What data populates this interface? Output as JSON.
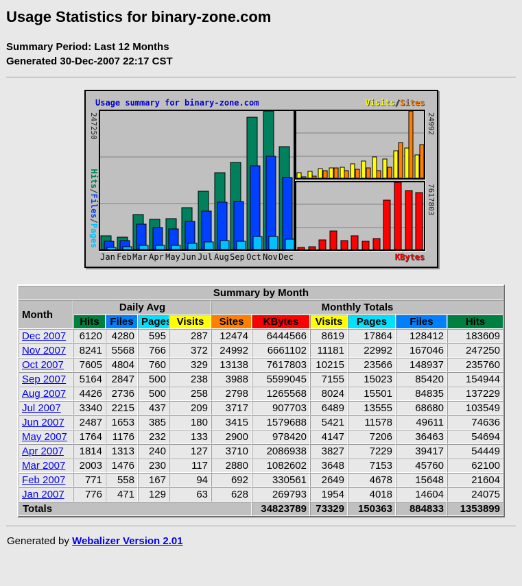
{
  "header": {
    "title": "Usage Statistics for binary-zone.com",
    "summary_period": "Summary Period: Last 12 Months",
    "generated": "Generated 30-Dec-2007 22:17 CST"
  },
  "chart_data": {
    "type": "bar",
    "title": "Usage summary for binary-zone.com",
    "categories": [
      "Jan",
      "Feb",
      "Mar",
      "Apr",
      "May",
      "Jun",
      "Jul",
      "Aug",
      "Sep",
      "Oct",
      "Nov",
      "Dec"
    ],
    "panels": {
      "left": {
        "ylabel_segments": [
          {
            "text": "Hits",
            "color": "#00805C"
          },
          {
            "text": "/",
            "color": "#404040"
          },
          {
            "text": "Files",
            "color": "#0040FF"
          },
          {
            "text": "/",
            "color": "#404040"
          },
          {
            "text": "Pages",
            "color": "#00C0FF"
          }
        ],
        "ymax": 247250,
        "axis_max_label": "247250",
        "grid": "thirds"
      },
      "right_top": {
        "ymax": 24992,
        "axis_max_label": "24992",
        "grid": "thirds"
      },
      "right_bottom": {
        "ymax": 7617803,
        "axis_max_label": "7617803",
        "grid": "thirds"
      }
    },
    "legend_top_right": [
      {
        "text": "Visits",
        "color": "#FFFF00"
      },
      {
        "text": "/",
        "color": "#404040"
      },
      {
        "text": "Sites",
        "color": "#FF8000"
      }
    ],
    "bottom_right_label": {
      "text": "KBytes",
      "color": "#FF0000"
    },
    "series": [
      {
        "name": "Hits",
        "panel": "left",
        "color": "#00805C",
        "values": [
          24075,
          21604,
          62100,
          54449,
          54694,
          74636,
          103549,
          137229,
          154944,
          235760,
          247250,
          183609
        ]
      },
      {
        "name": "Files",
        "panel": "left",
        "color": "#0040FF",
        "values": [
          14604,
          15648,
          45760,
          39417,
          36463,
          49611,
          68680,
          84835,
          85420,
          148937,
          167046,
          128412
        ]
      },
      {
        "name": "Pages",
        "panel": "left",
        "color": "#00C0FF",
        "values": [
          4018,
          4678,
          7153,
          7229,
          7206,
          11578,
          13555,
          15501,
          15023,
          23566,
          22992,
          17864
        ]
      },
      {
        "name": "Visits",
        "panel": "right_top",
        "color": "#FFFF00",
        "values": [
          1954,
          2649,
          3648,
          3827,
          4147,
          5421,
          6489,
          8024,
          7155,
          10215,
          11181,
          8619
        ]
      },
      {
        "name": "Sites",
        "panel": "right_top",
        "color": "#FF8000",
        "values": [
          628,
          692,
          2880,
          3710,
          2900,
          3415,
          3717,
          2798,
          3988,
          13138,
          24992,
          12474
        ]
      },
      {
        "name": "KBytes",
        "panel": "right_bottom",
        "color": "#FF0000",
        "values": [
          269793,
          330561,
          1082602,
          2086938,
          978420,
          1579688,
          907703,
          1265568,
          5599045,
          7617803,
          6661102,
          6444566
        ]
      }
    ]
  },
  "table": {
    "caption": "Summary by Month",
    "month_header": "Month",
    "daily_avg_header": "Daily Avg",
    "monthly_totals_header": "Monthly Totals",
    "columns": [
      {
        "label": "Hits",
        "color": "#008040"
      },
      {
        "label": "Files",
        "color": "#0080FF"
      },
      {
        "label": "Pages",
        "color": "#00E0FF"
      },
      {
        "label": "Visits",
        "color": "#FFFF00"
      },
      {
        "label": "Sites",
        "color": "#FF8000"
      },
      {
        "label": "KBytes",
        "color": "#FF0000"
      },
      {
        "label": "Visits",
        "color": "#FFFF00"
      },
      {
        "label": "Pages",
        "color": "#00E0FF"
      },
      {
        "label": "Files",
        "color": "#0080FF"
      },
      {
        "label": "Hits",
        "color": "#008040"
      }
    ],
    "rows": [
      [
        "Dec 2007",
        "6120",
        "4280",
        "595",
        "287",
        "12474",
        "6444566",
        "8619",
        "17864",
        "128412",
        "183609"
      ],
      [
        "Nov 2007",
        "8241",
        "5568",
        "766",
        "372",
        "24992",
        "6661102",
        "11181",
        "22992",
        "167046",
        "247250"
      ],
      [
        "Oct 2007",
        "7605",
        "4804",
        "760",
        "329",
        "13138",
        "7617803",
        "10215",
        "23566",
        "148937",
        "235760"
      ],
      [
        "Sep 2007",
        "5164",
        "2847",
        "500",
        "238",
        "3988",
        "5599045",
        "7155",
        "15023",
        "85420",
        "154944"
      ],
      [
        "Aug 2007",
        "4426",
        "2736",
        "500",
        "258",
        "2798",
        "1265568",
        "8024",
        "15501",
        "84835",
        "137229"
      ],
      [
        "Jul 2007",
        "3340",
        "2215",
        "437",
        "209",
        "3717",
        "907703",
        "6489",
        "13555",
        "68680",
        "103549"
      ],
      [
        "Jun 2007",
        "2487",
        "1653",
        "385",
        "180",
        "3415",
        "1579688",
        "5421",
        "11578",
        "49611",
        "74636"
      ],
      [
        "May 2007",
        "1764",
        "1176",
        "232",
        "133",
        "2900",
        "978420",
        "4147",
        "7206",
        "36463",
        "54694"
      ],
      [
        "Apr 2007",
        "1814",
        "1313",
        "240",
        "127",
        "3710",
        "2086938",
        "3827",
        "7229",
        "39417",
        "54449"
      ],
      [
        "Mar 2007",
        "2003",
        "1476",
        "230",
        "117",
        "2880",
        "1082602",
        "3648",
        "7153",
        "45760",
        "62100"
      ],
      [
        "Feb 2007",
        "771",
        "558",
        "167",
        "94",
        "692",
        "330561",
        "2649",
        "4678",
        "15648",
        "21604"
      ],
      [
        "Jan 2007",
        "776",
        "471",
        "129",
        "63",
        "628",
        "269793",
        "1954",
        "4018",
        "14604",
        "24075"
      ]
    ],
    "totals_label": "Totals",
    "totals": [
      "34823789",
      "73329",
      "150363",
      "884833",
      "1353899"
    ]
  },
  "footer": {
    "generated_by": "Generated by",
    "link_label": "Webalizer Version 2.01"
  }
}
